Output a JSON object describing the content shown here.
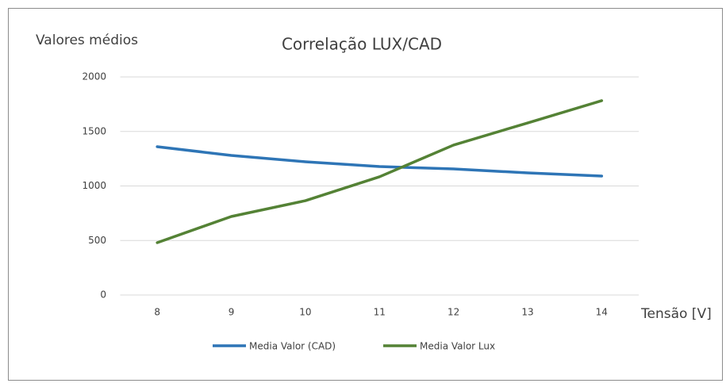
{
  "chart_data": {
    "type": "line",
    "title": "Correlação LUX/CAD",
    "y_label": "Valores médios",
    "x_label": "Tensão [V]",
    "categories": [
      "8",
      "9",
      "10",
      "11",
      "12",
      "13",
      "14"
    ],
    "series": [
      {
        "name": "Media Valor (CAD)",
        "color": "#2e75b6",
        "values": [
          1360,
          1280,
          1222,
          1178,
          1156,
          1120,
          1091
        ]
      },
      {
        "name": "Media Valor Lux",
        "color": "#548235",
        "values": [
          480,
          720,
          865,
          1084,
          1375,
          1578,
          1782
        ]
      }
    ],
    "ylim": [
      0,
      2000
    ],
    "yticks": [
      0,
      500,
      1000,
      1500,
      2000
    ],
    "grid": true,
    "legend": "bottom"
  }
}
